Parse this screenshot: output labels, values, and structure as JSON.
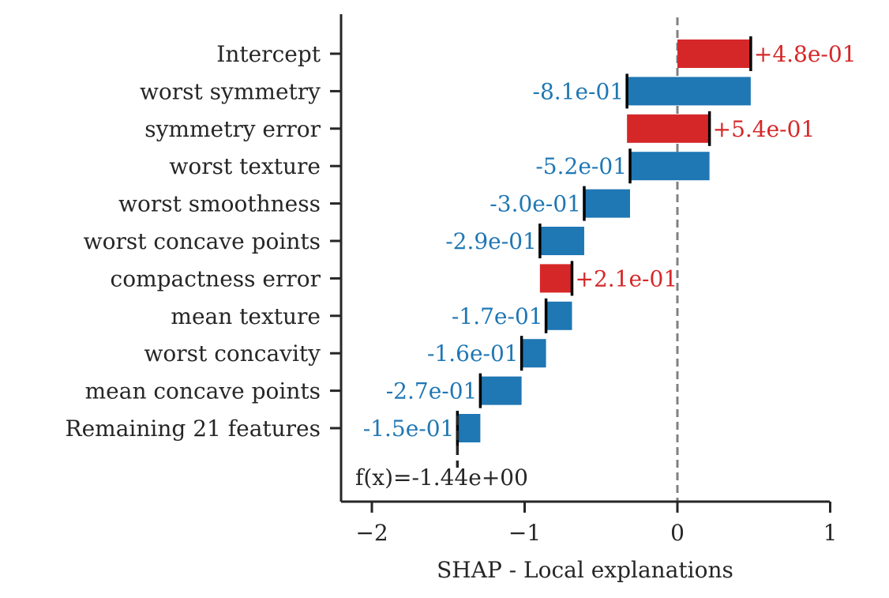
{
  "chart_data": {
    "type": "bar",
    "orientation": "horizontal-waterfall",
    "xlabel": "SHAP - Local explanations",
    "xlim": [
      -2.2,
      1.0
    ],
    "xticks": [
      -2,
      -1,
      0,
      1
    ],
    "xtick_labels": [
      "−2",
      "−1",
      "0",
      "1"
    ],
    "grid": false,
    "baseline_line": 0,
    "colors": {
      "positive": "#d62728",
      "negative": "#1f77b4",
      "text": "#262626",
      "baseline": "#808080"
    },
    "bars": [
      {
        "label": "Intercept",
        "start": 0.0,
        "end": 0.48,
        "value_label": "+4.8e-01"
      },
      {
        "label": "worst symmetry",
        "start": 0.48,
        "end": -0.33,
        "value_label": "-8.1e-01"
      },
      {
        "label": "symmetry error",
        "start": -0.33,
        "end": 0.21,
        "value_label": "+5.4e-01"
      },
      {
        "label": "worst texture",
        "start": 0.21,
        "end": -0.31,
        "value_label": "-5.2e-01"
      },
      {
        "label": "worst smoothness",
        "start": -0.31,
        "end": -0.61,
        "value_label": "-3.0e-01"
      },
      {
        "label": "worst concave points",
        "start": -0.61,
        "end": -0.9,
        "value_label": "-2.9e-01"
      },
      {
        "label": "compactness error",
        "start": -0.9,
        "end": -0.69,
        "value_label": "+2.1e-01"
      },
      {
        "label": "mean texture",
        "start": -0.69,
        "end": -0.86,
        "value_label": "-1.7e-01"
      },
      {
        "label": "worst concavity",
        "start": -0.86,
        "end": -1.02,
        "value_label": "-1.6e-01"
      },
      {
        "label": "mean concave points",
        "start": -1.02,
        "end": -1.29,
        "value_label": "-2.7e-01"
      },
      {
        "label": "Remaining 21 features",
        "start": -1.29,
        "end": -1.44,
        "value_label": "-1.5e-01"
      }
    ],
    "final_value": -1.44,
    "final_label": "f(x)=-1.44e+00"
  }
}
